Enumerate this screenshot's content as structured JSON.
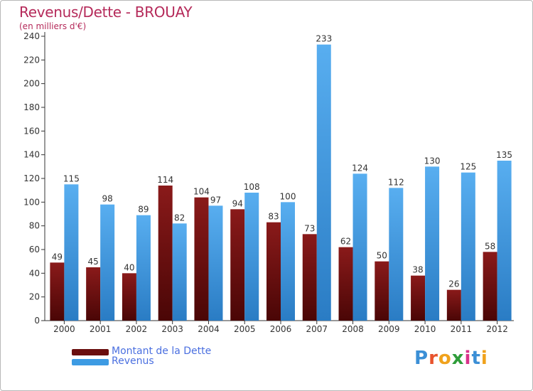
{
  "header": {
    "title": "Revenus/Dette - BROUAY",
    "subtitle": "(en milliers d'€)"
  },
  "legend": [
    {
      "label": "Montant de la Dette",
      "color": "#7a1212"
    },
    {
      "label": "Revenus",
      "color": "#3d9be3"
    }
  ],
  "logo": {
    "letters": [
      {
        "ch": "P",
        "color": "#3b8fd6"
      },
      {
        "ch": "r",
        "color": "#e8532d"
      },
      {
        "ch": "o",
        "color": "#f0a21c"
      },
      {
        "ch": "x",
        "color": "#2f9d3a"
      },
      {
        "ch": "i",
        "color": "#d9338a"
      },
      {
        "ch": "t",
        "color": "#3b8fd6"
      },
      {
        "ch": "i",
        "color": "#f0a21c"
      }
    ]
  },
  "chart_data": {
    "type": "bar",
    "title": "Revenus/Dette - BROUAY",
    "subtitle": "(en milliers d'€)",
    "xlabel": "",
    "ylabel": "",
    "categories": [
      "2000",
      "2001",
      "2002",
      "2003",
      "2004",
      "2005",
      "2006",
      "2007",
      "2008",
      "2009",
      "2010",
      "2011",
      "2012"
    ],
    "series": [
      {
        "name": "Montant de la Dette",
        "color": "#7a1212",
        "values": [
          49,
          45,
          40,
          114,
          104,
          94,
          83,
          73,
          62,
          50,
          38,
          26,
          58
        ]
      },
      {
        "name": "Revenus",
        "color": "#3d9be3",
        "values": [
          115,
          98,
          89,
          82,
          97,
          108,
          100,
          233,
          124,
          112,
          130,
          125,
          135
        ]
      }
    ],
    "ylim": [
      0,
      240
    ],
    "yticks": [
      0,
      20,
      40,
      60,
      80,
      100,
      120,
      140,
      160,
      180,
      200,
      220,
      240
    ],
    "grid": false,
    "legend_position": "bottom-left"
  }
}
